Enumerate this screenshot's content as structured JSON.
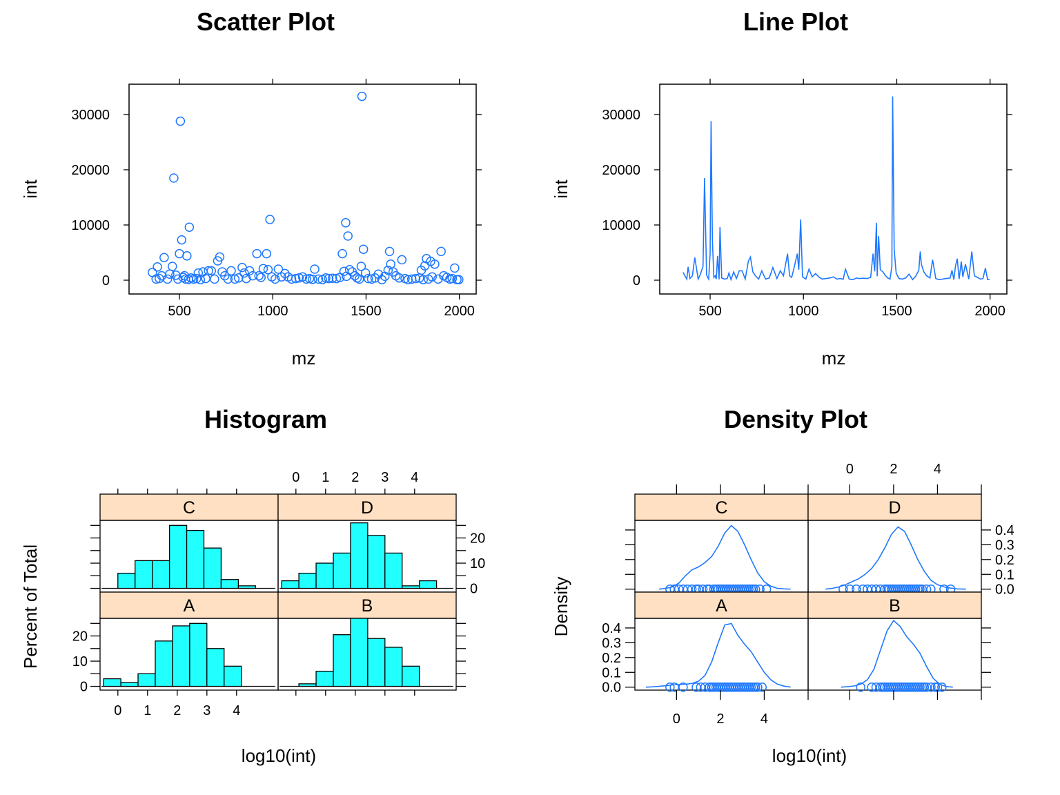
{
  "chart_data": [
    {
      "type": "scatter",
      "title": "Scatter Plot",
      "xlabel": "mz",
      "ylabel": "int",
      "xlim": [
        230,
        2090
      ],
      "ylim": [
        -2500,
        35500
      ],
      "xticks": [
        500,
        1000,
        1500,
        2000
      ],
      "yticks": [
        0,
        10000,
        20000,
        30000
      ],
      "grid": false,
      "color": "#1e78ff",
      "x": [
        355,
        375,
        382,
        392,
        405,
        418,
        436,
        448,
        462,
        470,
        481,
        492,
        500,
        505,
        512,
        520,
        527,
        533,
        540,
        548,
        553,
        562,
        576,
        592,
        601,
        612,
        626,
        641,
        656,
        671,
        688,
        705,
        716,
        729,
        743,
        760,
        777,
        797,
        817,
        836,
        847,
        858,
        876,
        893,
        915,
        926,
        937,
        949,
        967,
        975,
        985,
        995,
        1013,
        1030,
        1047,
        1065,
        1082,
        1101,
        1123,
        1141,
        1160,
        1180,
        1197,
        1213,
        1225,
        1245,
        1266,
        1284,
        1300,
        1320,
        1341,
        1360,
        1373,
        1382,
        1391,
        1395,
        1403,
        1412,
        1426,
        1440,
        1452,
        1464,
        1474,
        1478,
        1486,
        1497,
        1512,
        1530,
        1548,
        1566,
        1585,
        1601,
        1618,
        1626,
        1632,
        1645,
        1660,
        1678,
        1692,
        1709,
        1725,
        1745,
        1766,
        1786,
        1796,
        1806,
        1815,
        1824,
        1834,
        1846,
        1854,
        1868,
        1886,
        1902,
        1916,
        1933,
        1949,
        1962,
        1975,
        1987,
        1997
      ],
      "y": [
        1400,
        200,
        2400,
        300,
        800,
        4100,
        200,
        1100,
        2500,
        18500,
        900,
        200,
        4800,
        28800,
        7300,
        500,
        800,
        200,
        4400,
        150,
        9600,
        400,
        200,
        300,
        1300,
        100,
        1500,
        300,
        1700,
        1700,
        200,
        3500,
        4200,
        1500,
        800,
        200,
        1700,
        200,
        400,
        2300,
        1300,
        300,
        1700,
        800,
        4800,
        800,
        500,
        2100,
        4800,
        1900,
        11000,
        600,
        200,
        2000,
        600,
        1200,
        600,
        200,
        300,
        400,
        600,
        200,
        300,
        150,
        2000,
        200,
        100,
        400,
        300,
        350,
        300,
        500,
        4800,
        1600,
        10400,
        700,
        8000,
        1900,
        1500,
        800,
        400,
        200,
        2500,
        33300,
        5600,
        1300,
        300,
        200,
        400,
        1100,
        100,
        700,
        1800,
        5200,
        2900,
        1500,
        800,
        400,
        3700,
        300,
        100,
        200,
        300,
        400,
        1800,
        100,
        2600,
        3900,
        200,
        3400,
        600,
        2900,
        200,
        5200,
        800,
        500,
        200,
        300,
        2200,
        100,
        100
      ]
    },
    {
      "type": "line",
      "title": "Line Plot",
      "xlabel": "mz",
      "ylabel": "int",
      "xlim": [
        230,
        2090
      ],
      "ylim": [
        -2500,
        35500
      ],
      "xticks": [
        500,
        1000,
        1500,
        2000
      ],
      "yticks": [
        0,
        10000,
        20000,
        30000
      ],
      "grid": false,
      "color": "#1e78ff",
      "series_ref": "same mz/int data as the scatter plot"
    },
    {
      "type": "bar",
      "title": "Histogram",
      "xlabel": "log10(int)",
      "ylabel": "Percent of Total",
      "xlim": [
        -0.6,
        5.4
      ],
      "ylim": [
        -1.5,
        27
      ],
      "xticks": [
        0,
        1,
        2,
        3,
        4
      ],
      "yticks": [
        0,
        10,
        20
      ],
      "bar_color": "#22ffff",
      "strip_color": "#ffe0c2",
      "bin_width": 0.58,
      "panels": [
        {
          "name": "C",
          "bins": [
            0.0,
            0.58,
            1.16,
            1.74,
            2.32,
            2.9,
            3.48,
            4.06
          ],
          "values": [
            6,
            11,
            11,
            25,
            23,
            16,
            3.5,
            1
          ]
        },
        {
          "name": "D",
          "bins": [
            -0.48,
            0.1,
            0.68,
            1.26,
            1.84,
            2.42,
            3.0,
            3.58,
            4.16
          ],
          "values": [
            3,
            6,
            10,
            14,
            26,
            21,
            14,
            1,
            3
          ]
        },
        {
          "name": "A",
          "bins": [
            -0.48,
            0.1,
            0.68,
            1.26,
            1.84,
            2.42,
            3.0,
            3.58
          ],
          "values": [
            3,
            1.5,
            5,
            18,
            24,
            25,
            15,
            8
          ]
        },
        {
          "name": "B",
          "bins": [
            0.1,
            0.68,
            1.26,
            1.84,
            2.42,
            3.0,
            3.58
          ],
          "values": [
            1,
            6,
            20.5,
            27,
            19,
            15.5,
            8
          ]
        }
      ]
    },
    {
      "type": "line",
      "title": "Density Plot",
      "xlabel": "log10(int)",
      "ylabel": "Density",
      "xlim": [
        -1.9,
        6.0
      ],
      "ylim": [
        -0.02,
        0.465
      ],
      "xticks": [
        0,
        2,
        4
      ],
      "yticks": [
        0.0,
        0.1,
        0.2,
        0.3,
        0.4
      ],
      "color": "#1e78ff",
      "strip_color": "#ffe0c2",
      "panels": [
        {
          "name": "C",
          "curve_x": [
            -0.8,
            -0.5,
            -0.2,
            0.1,
            0.4,
            0.7,
            1.0,
            1.3,
            1.6,
            1.9,
            2.2,
            2.5,
            2.8,
            3.1,
            3.4,
            3.7,
            4.0,
            4.3,
            4.6,
            4.9,
            5.2
          ],
          "curve_y": [
            0.0,
            0.005,
            0.015,
            0.04,
            0.09,
            0.13,
            0.15,
            0.18,
            0.22,
            0.29,
            0.38,
            0.43,
            0.39,
            0.3,
            0.2,
            0.11,
            0.05,
            0.02,
            0.005,
            0.002,
            0.0
          ],
          "rug": [
            -0.3,
            -0.1,
            0.1,
            0.3,
            0.5,
            0.7,
            0.9,
            1.0,
            1.2,
            1.4,
            1.5,
            1.7,
            1.8,
            1.9,
            2.0,
            2.1,
            2.2,
            2.3,
            2.4,
            2.5,
            2.6,
            2.7,
            2.8,
            2.9,
            3.0,
            3.1,
            3.2,
            3.3,
            3.4,
            3.5,
            3.6,
            3.8,
            4.1
          ]
        },
        {
          "name": "D",
          "curve_x": [
            -1.1,
            -0.8,
            -0.5,
            -0.2,
            0.1,
            0.4,
            0.7,
            1.0,
            1.3,
            1.6,
            1.9,
            2.2,
            2.5,
            2.8,
            3.1,
            3.4,
            3.7,
            4.0,
            4.3,
            4.6,
            4.9,
            5.3
          ],
          "curve_y": [
            0.0,
            0.005,
            0.015,
            0.03,
            0.05,
            0.07,
            0.1,
            0.14,
            0.2,
            0.28,
            0.37,
            0.42,
            0.39,
            0.3,
            0.2,
            0.12,
            0.06,
            0.03,
            0.015,
            0.007,
            0.002,
            0.0
          ],
          "rug": [
            -0.3,
            0.0,
            0.3,
            0.6,
            0.8,
            1.0,
            1.2,
            1.4,
            1.6,
            1.7,
            1.8,
            1.9,
            2.0,
            2.1,
            2.2,
            2.3,
            2.4,
            2.5,
            2.6,
            2.7,
            2.8,
            2.9,
            3.0,
            3.1,
            3.2,
            3.3,
            3.5,
            3.7,
            4.3,
            4.6
          ]
        },
        {
          "name": "A",
          "curve_x": [
            -1.4,
            -1.1,
            -0.8,
            -0.5,
            -0.2,
            0.1,
            0.4,
            0.7,
            1.0,
            1.3,
            1.6,
            1.9,
            2.2,
            2.5,
            2.8,
            3.1,
            3.4,
            3.7,
            4.0,
            4.3,
            4.6,
            4.9,
            5.2
          ],
          "curve_y": [
            0.0,
            0.002,
            0.005,
            0.01,
            0.015,
            0.018,
            0.02,
            0.025,
            0.04,
            0.08,
            0.17,
            0.3,
            0.42,
            0.43,
            0.35,
            0.29,
            0.24,
            0.17,
            0.1,
            0.05,
            0.02,
            0.007,
            0.0
          ],
          "rug": [
            -0.3,
            -0.1,
            0.3,
            0.9,
            1.1,
            1.3,
            1.5,
            1.6,
            1.7,
            1.8,
            1.9,
            2.0,
            2.1,
            2.2,
            2.3,
            2.4,
            2.5,
            2.6,
            2.7,
            2.8,
            2.9,
            3.0,
            3.1,
            3.2,
            3.3,
            3.4,
            3.5,
            3.6,
            3.7,
            3.9
          ]
        },
        {
          "name": "B",
          "curve_x": [
            -0.4,
            -0.1,
            0.2,
            0.5,
            0.8,
            1.1,
            1.4,
            1.7,
            2.0,
            2.3,
            2.6,
            2.9,
            3.2,
            3.5,
            3.8,
            4.1,
            4.4,
            4.7
          ],
          "curve_y": [
            0.0,
            0.003,
            0.008,
            0.02,
            0.05,
            0.12,
            0.25,
            0.38,
            0.45,
            0.41,
            0.34,
            0.29,
            0.23,
            0.14,
            0.06,
            0.02,
            0.004,
            0.0
          ],
          "rug": [
            0.5,
            1.0,
            1.2,
            1.4,
            1.5,
            1.6,
            1.7,
            1.8,
            1.9,
            2.0,
            2.1,
            2.2,
            2.3,
            2.4,
            2.5,
            2.6,
            2.7,
            2.8,
            2.9,
            3.0,
            3.1,
            3.2,
            3.3,
            3.4,
            3.5,
            3.7,
            3.9,
            4.0,
            4.2
          ]
        }
      ]
    }
  ]
}
